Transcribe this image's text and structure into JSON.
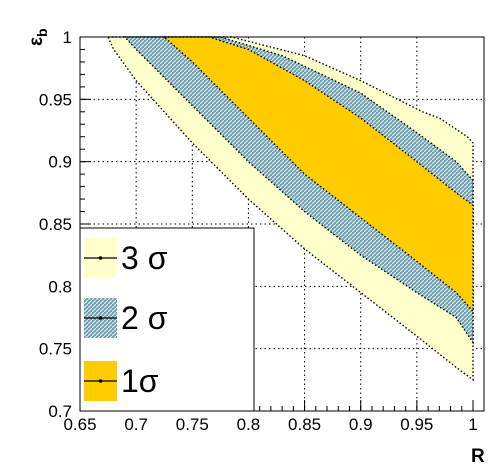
{
  "chart_data": {
    "type": "contour",
    "xlabel": "R",
    "ylabel": "ε",
    "ylabel_sub": "b",
    "xlim": [
      0.65,
      1.0
    ],
    "ylim": [
      0.7,
      1.0
    ],
    "x_ticks": [
      "0.65",
      "0.7",
      "0.75",
      "0.8",
      "0.85",
      "0.9",
      "0.95",
      "1"
    ],
    "y_ticks": [
      "0.7",
      "0.75",
      "0.8",
      "0.85",
      "0.9",
      "0.95",
      "1"
    ],
    "grid": true,
    "legend_placement": "bottom-left",
    "regions": [
      {
        "name": "3 σ",
        "color": "#ffffcc",
        "hatch": false,
        "upper": [
          [
            0.675,
            1.0
          ],
          [
            0.75,
            1.0
          ],
          [
            0.785,
            1.0
          ],
          [
            0.85,
            0.985
          ],
          [
            0.9,
            0.965
          ],
          [
            0.955,
            0.94
          ],
          [
            0.97,
            0.935
          ],
          [
            0.995,
            0.92
          ],
          [
            1.0,
            0.915
          ]
        ],
        "lower": [
          [
            0.675,
            1.0
          ],
          [
            0.68,
            0.99
          ],
          [
            0.7,
            0.965
          ],
          [
            0.75,
            0.915
          ],
          [
            0.8,
            0.87
          ],
          [
            0.85,
            0.83
          ],
          [
            0.9,
            0.795
          ],
          [
            0.95,
            0.76
          ],
          [
            0.985,
            0.735
          ],
          [
            1.0,
            0.725
          ]
        ]
      },
      {
        "name": "2 σ",
        "color": "#7fa8b8",
        "hatch": true,
        "upper": [
          [
            0.69,
            1.0
          ],
          [
            0.75,
            1.0
          ],
          [
            0.775,
            1.0
          ],
          [
            0.83,
            0.985
          ],
          [
            0.9,
            0.955
          ],
          [
            0.955,
            0.92
          ],
          [
            0.985,
            0.9
          ],
          [
            1.0,
            0.885
          ]
        ],
        "lower": [
          [
            0.69,
            1.0
          ],
          [
            0.7,
            0.99
          ],
          [
            0.75,
            0.945
          ],
          [
            0.8,
            0.9
          ],
          [
            0.85,
            0.86
          ],
          [
            0.9,
            0.825
          ],
          [
            0.95,
            0.795
          ],
          [
            0.985,
            0.775
          ],
          [
            1.0,
            0.755
          ]
        ]
      },
      {
        "name": "1σ",
        "color": "#ffcc00",
        "hatch": false,
        "upper": [
          [
            0.725,
            1.0
          ],
          [
            0.75,
            1.0
          ],
          [
            0.765,
            1.0
          ],
          [
            0.8,
            0.99
          ],
          [
            0.85,
            0.965
          ],
          [
            0.9,
            0.935
          ],
          [
            0.95,
            0.9
          ],
          [
            0.985,
            0.875
          ],
          [
            1.0,
            0.865
          ]
        ],
        "lower": [
          [
            0.725,
            1.0
          ],
          [
            0.75,
            0.98
          ],
          [
            0.8,
            0.935
          ],
          [
            0.85,
            0.89
          ],
          [
            0.9,
            0.855
          ],
          [
            0.95,
            0.82
          ],
          [
            0.985,
            0.795
          ],
          [
            1.0,
            0.78
          ]
        ]
      }
    ],
    "legend": [
      {
        "label": "3 σ",
        "color": "#ffffcc",
        "hatch": false
      },
      {
        "label": "2 σ",
        "color": "#7fa8b8",
        "hatch": true
      },
      {
        "label": "1σ",
        "color": "#ffcc00",
        "hatch": false
      }
    ]
  }
}
